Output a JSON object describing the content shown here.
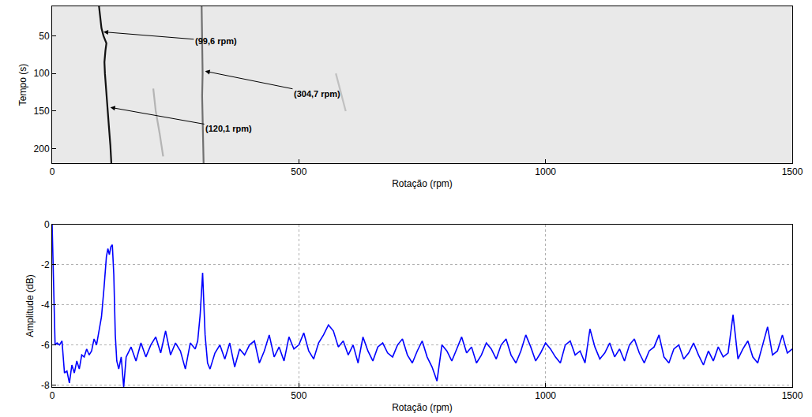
{
  "chart_data": [
    {
      "type": "line",
      "xlabel": "Rotação (rpm)",
      "ylabel": "Tempo (s)",
      "xlim": [
        0,
        1500
      ],
      "ylim": [
        219,
        11
      ],
      "xticks": [
        0,
        500,
        1000,
        1500
      ],
      "yticks": [
        50,
        100,
        150,
        200
      ],
      "grid": false,
      "series": [
        {
          "color": "#111111",
          "x": [
            95,
            97,
            100,
            104,
            110,
            108,
            106,
            107,
            109,
            112,
            115,
            118,
            120
          ],
          "values": [
            11,
            25,
            40,
            50,
            60,
            70,
            85,
            100,
            120,
            145,
            170,
            195,
            219
          ]
        },
        {
          "color": "#707070",
          "x": [
            303,
            304,
            305,
            305,
            304,
            305,
            306,
            307
          ],
          "values": [
            11,
            40,
            70,
            100,
            130,
            160,
            190,
            219
          ]
        },
        {
          "color": "#b4b4b4",
          "x": [
            205,
            210,
            218,
            225
          ],
          "values": [
            120,
            150,
            180,
            210
          ]
        },
        {
          "color": "#c0c0c0",
          "x": [
            575,
            585,
            595
          ],
          "values": [
            100,
            125,
            150
          ]
        }
      ],
      "annotations": [
        {
          "text": "(99,6 rpm)",
          "x": 104,
          "y": 45,
          "ax": 332,
          "ay": 57
        },
        {
          "text": "(304,7 rpm)",
          "x": 310,
          "y": 97,
          "ax": 537,
          "ay": 127
        },
        {
          "text": "(120,1 rpm)",
          "x": 118,
          "y": 145,
          "ax": 358,
          "ay": 173
        }
      ]
    },
    {
      "type": "line",
      "xlabel": "Rotação (rpm)",
      "ylabel": "Amplitude (dB)",
      "xlim": [
        0,
        1500
      ],
      "ylim": [
        -8.1,
        0
      ],
      "xticks": [
        0,
        500,
        1000,
        1500
      ],
      "yticks": [
        -8,
        -6,
        -4,
        -2,
        0
      ],
      "grid": true,
      "series": [
        {
          "color": "#0000ff",
          "x": [
            0,
            3,
            6,
            10,
            15,
            20,
            25,
            30,
            35,
            40,
            45,
            50,
            55,
            60,
            65,
            70,
            75,
            80,
            85,
            90,
            95,
            100,
            105,
            110,
            113,
            116,
            119,
            122,
            125,
            128,
            131,
            135,
            140,
            145,
            150,
            160,
            170,
            180,
            190,
            200,
            210,
            220,
            230,
            240,
            250,
            260,
            270,
            280,
            290,
            295,
            300,
            305,
            310,
            315,
            320,
            330,
            340,
            350,
            360,
            370,
            380,
            390,
            400,
            410,
            420,
            430,
            440,
            450,
            460,
            470,
            480,
            490,
            500,
            510,
            520,
            530,
            540,
            550,
            560,
            570,
            580,
            590,
            600,
            610,
            620,
            630,
            640,
            650,
            660,
            670,
            680,
            690,
            700,
            710,
            720,
            730,
            740,
            750,
            760,
            770,
            780,
            790,
            800,
            810,
            820,
            830,
            840,
            850,
            860,
            870,
            880,
            890,
            900,
            910,
            920,
            930,
            940,
            950,
            960,
            970,
            980,
            990,
            1000,
            1010,
            1020,
            1030,
            1040,
            1050,
            1060,
            1070,
            1080,
            1090,
            1100,
            1110,
            1120,
            1130,
            1140,
            1150,
            1160,
            1170,
            1180,
            1190,
            1200,
            1210,
            1220,
            1230,
            1240,
            1250,
            1260,
            1270,
            1280,
            1290,
            1300,
            1310,
            1320,
            1330,
            1340,
            1350,
            1360,
            1370,
            1380,
            1390,
            1400,
            1410,
            1420,
            1430,
            1440,
            1450,
            1460,
            1470,
            1480,
            1490,
            1500
          ],
          "values": [
            0,
            -3.5,
            -6.0,
            -5.9,
            -6.0,
            -5.8,
            -7.4,
            -7.3,
            -7.9,
            -7.0,
            -7.4,
            -6.8,
            -7.2,
            -6.5,
            -6.6,
            -6.2,
            -6.5,
            -6.3,
            -5.7,
            -6.0,
            -5.3,
            -4.6,
            -3.2,
            -1.6,
            -1.2,
            -1.5,
            -1.1,
            -1.0,
            -2.5,
            -5.5,
            -6.8,
            -7.2,
            -6.6,
            -8.1,
            -6.6,
            -6.1,
            -6.8,
            -5.9,
            -6.6,
            -6.0,
            -5.6,
            -6.4,
            -5.3,
            -6.5,
            -5.9,
            -6.3,
            -7.2,
            -5.9,
            -6.2,
            -5.8,
            -4.5,
            -2.4,
            -5.5,
            -6.9,
            -7.2,
            -6.4,
            -6.0,
            -6.7,
            -5.9,
            -7.1,
            -6.2,
            -6.5,
            -6.0,
            -5.8,
            -6.9,
            -6.3,
            -5.5,
            -6.6,
            -6.1,
            -6.8,
            -5.6,
            -6.2,
            -6.0,
            -5.4,
            -6.3,
            -6.7,
            -5.9,
            -5.5,
            -5.0,
            -5.3,
            -6.1,
            -5.8,
            -6.5,
            -6.0,
            -6.9,
            -5.6,
            -6.3,
            -6.8,
            -6.1,
            -5.9,
            -6.4,
            -6.6,
            -6.0,
            -5.7,
            -6.5,
            -6.9,
            -6.3,
            -5.8,
            -6.6,
            -7.1,
            -7.8,
            -6.0,
            -6.3,
            -6.8,
            -6.2,
            -5.6,
            -6.4,
            -6.1,
            -6.9,
            -6.5,
            -5.9,
            -6.2,
            -6.7,
            -6.0,
            -5.7,
            -6.5,
            -6.9,
            -6.3,
            -5.5,
            -6.1,
            -6.8,
            -6.4,
            -5.9,
            -6.2,
            -6.6,
            -6.9,
            -6.0,
            -5.8,
            -6.5,
            -6.3,
            -6.9,
            -5.2,
            -6.1,
            -6.7,
            -6.4,
            -5.9,
            -6.6,
            -6.2,
            -6.8,
            -6.0,
            -5.7,
            -6.4,
            -6.9,
            -6.3,
            -6.1,
            -5.5,
            -6.6,
            -6.9,
            -6.2,
            -6.0,
            -6.7,
            -6.4,
            -5.9,
            -6.5,
            -7.0,
            -6.3,
            -6.8,
            -6.1,
            -6.6,
            -6.4,
            -4.5,
            -6.7,
            -6.2,
            -5.8,
            -6.6,
            -6.9,
            -6.0,
            -5.1,
            -6.5,
            -6.3,
            -5.5,
            -6.4,
            -6.2
          ]
        }
      ]
    }
  ]
}
